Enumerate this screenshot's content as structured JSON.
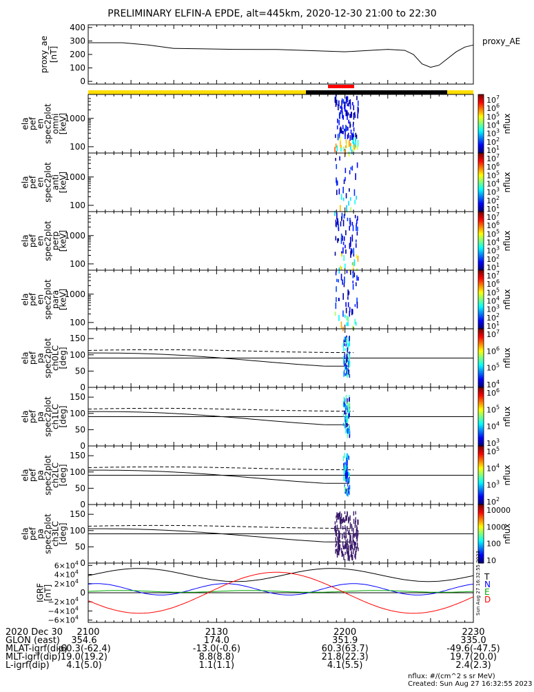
{
  "title": "PRELIMINARY ELFIN-A EPDE, alt=445km, 2020-12-30 21:00 to 22:30",
  "chart_data": [
    {
      "type": "line",
      "name": "proxy_ae",
      "ylabel": "proxy_ae [nT]",
      "legend": "proxy_AE",
      "ylim": [
        -20,
        420
      ],
      "yticks": [
        "400",
        "300",
        "200",
        "100",
        "0"
      ],
      "ytick_values": [
        400,
        300,
        200,
        100,
        0
      ],
      "x_minutes": [
        0,
        8,
        14,
        20,
        26,
        34,
        44,
        60,
        70,
        74,
        76,
        78,
        80,
        82,
        86,
        88,
        90
      ],
      "values": [
        287,
        287,
        270,
        245,
        242,
        238,
        237,
        220,
        238,
        230,
        200,
        130,
        105,
        120,
        220,
        255,
        270
      ]
    },
    {
      "type": "heatmap",
      "name": "elapefen-spec2plot-omni",
      "ylabel": "ela pef en spec2plot omni [keV]",
      "yticks": [
        "1000",
        "100"
      ],
      "ytick_values": [
        1000,
        100
      ],
      "ylog": [
        60,
        7000
      ],
      "colorbar": {
        "label": "nflux",
        "ticks": [
          "10^7",
          "10^6",
          "10^5",
          "10^4",
          "10^3",
          "10^2",
          "10^1"
        ]
      }
    },
    {
      "type": "heatmap",
      "name": "elapefen-spec2plot-anti",
      "ylabel": "ela pef en spec2plot anti [keV]",
      "yticks": [
        "1000",
        "100"
      ],
      "ytick_values": [
        1000,
        100
      ],
      "ylog": [
        60,
        7000
      ],
      "colorbar": {
        "label": "nflux",
        "ticks": [
          "10^7",
          "10^6",
          "10^5",
          "10^4",
          "10^3",
          "10^2",
          "10^1"
        ]
      }
    },
    {
      "type": "heatmap",
      "name": "elapefen-spec2plot-perp",
      "ylabel": "ela pef en spec2plot perp [keV]",
      "yticks": [
        "1000",
        "100"
      ],
      "ytick_values": [
        1000,
        100
      ],
      "ylog": [
        60,
        7000
      ],
      "colorbar": {
        "label": "nflux",
        "ticks": [
          "10^7",
          "10^6",
          "10^5",
          "10^4",
          "10^3",
          "10^2",
          "10^1"
        ]
      }
    },
    {
      "type": "heatmap",
      "name": "elapefen-spec2plot-para",
      "ylabel": "ela pef en spec2plot para [keV]",
      "yticks": [
        "1000",
        "100"
      ],
      "ytick_values": [
        1000,
        100
      ],
      "ylog": [
        60,
        7000
      ],
      "colorbar": {
        "label": "nflux",
        "ticks": [
          "10^7",
          "10^6",
          "10^5",
          "10^4",
          "10^3",
          "10^2",
          "10^1"
        ]
      }
    },
    {
      "type": "heatmap",
      "name": "elapefpa-spec2plot-ch0LC",
      "ylabel": "ela pef pa spec2plot ch0LC [deg]",
      "yticks": [
        "150",
        "100",
        "50",
        "0"
      ],
      "ytick_values": [
        150,
        100,
        50,
        0
      ],
      "ylim": [
        0,
        180
      ],
      "colorbar": {
        "label": "nflux",
        "ticks": [
          "10^7",
          "10^6",
          "10^5",
          "10^4"
        ]
      }
    },
    {
      "type": "heatmap",
      "name": "elapefpa-spec2plot-ch1LC",
      "ylabel": "ela pef pa spec2plot ch1LC [deg]",
      "yticks": [
        "150",
        "100",
        "50",
        "0"
      ],
      "ytick_values": [
        150,
        100,
        50,
        0
      ],
      "ylim": [
        0,
        180
      ],
      "colorbar": {
        "label": "nflux",
        "ticks": [
          "10^6",
          "10^5",
          "10^4",
          "10^3"
        ]
      }
    },
    {
      "type": "heatmap",
      "name": "elapefpa-spec2plot-ch2LC",
      "ylabel": "ela pef pa spec2plot ch2LC [deg]",
      "yticks": [
        "150",
        "100",
        "50",
        "0"
      ],
      "ytick_values": [
        150,
        100,
        50,
        0
      ],
      "ylim": [
        0,
        180
      ],
      "colorbar": {
        "label": "nflux",
        "ticks": [
          "10^5",
          "10^4",
          "10^3",
          "10^2"
        ]
      }
    },
    {
      "type": "heatmap",
      "name": "elapefpa-spec2plot-ch3LC",
      "ylabel": "ela pef pa spec2plot ch3LC [deg]",
      "yticks": [
        "150",
        "100",
        "50",
        "0"
      ],
      "ytick_values": [
        150,
        100,
        50,
        0
      ],
      "ylim": [
        0,
        180
      ],
      "colorbar": {
        "label": "nflux",
        "ticks": [
          "10000",
          "1000",
          "100",
          "10"
        ]
      }
    },
    {
      "type": "line",
      "name": "igrf",
      "ylabel": "IGRF [nT]",
      "ylim": [
        -65000,
        65000
      ],
      "yticks": [
        "6×10^4",
        "4×10^4",
        "2×10^4",
        "0",
        "−2×10^4",
        "−4×10^4",
        "−6×10^4"
      ],
      "ytick_values": [
        60000,
        40000,
        20000,
        0,
        -20000,
        -40000,
        -60000
      ],
      "legend": [
        "T",
        "N",
        "E",
        "D"
      ],
      "colors": [
        "#000000",
        "#0000ff",
        "#00aa00",
        "#ff0000"
      ]
    }
  ],
  "xaxis": {
    "ticks": [
      "2100",
      "2130",
      "2200",
      "2230"
    ],
    "tick_minutes": [
      0,
      30,
      60,
      90
    ]
  },
  "footer": {
    "rows": [
      {
        "label": "2020 Dec 30",
        "vals": [
          "2100",
          "2130",
          "2200",
          "2230"
        ]
      },
      {
        "label": "GLON (east)",
        "vals": [
          "354.6",
          "174.0",
          "351.9",
          "335.0"
        ]
      },
      {
        "label": "MLAT-igrf(dip)",
        "vals": [
          "-60.3(-62.4)",
          "-13.0(-0.6)",
          "60.3(63.7)",
          "-49.6(-47.5)"
        ]
      },
      {
        "label": "MLT-igrf(dip)",
        "vals": [
          "19.0(19.2)",
          "8.8(8.8)",
          "21.8(22.3)",
          "19.7(20.0)"
        ]
      },
      {
        "label": "L-igrf(dip)",
        "vals": [
          "4.1(5.0)",
          "1.1(1.1)",
          "4.1(5.5)",
          "2.4(2.3)"
        ]
      }
    ],
    "nflux_note": "nflux: #/(cm^2 s sr MeV)",
    "created": "Created: Sun Aug 27 16:32:55 2023",
    "side_stamp": "Sun Aug 27 16:32:55 2023"
  },
  "colors": {
    "yellow_bar": "#ffdd00",
    "black_bar": "#000000",
    "red_bar": "#ff0000"
  }
}
